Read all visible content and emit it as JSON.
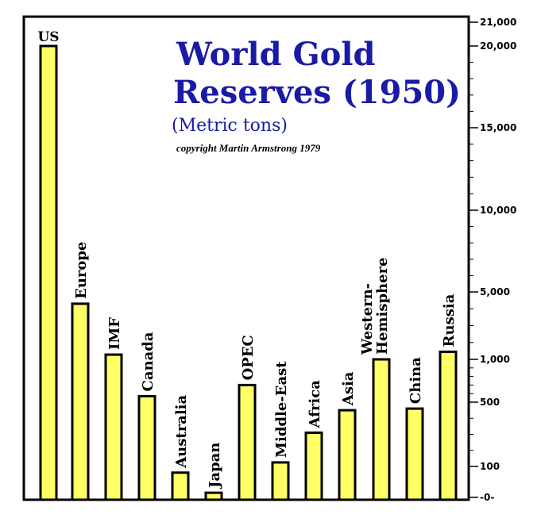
{
  "chart_data": {
    "type": "bar",
    "title_line1": "World Gold",
    "title_line2": "Reserves (1950)",
    "subtitle": "(Metric tons)",
    "credit": "copyright Martin Armstrong 1979",
    "y_scale": "nonlinear (piecewise)",
    "y_ticks": [
      {
        "value": 0,
        "label": "-0-"
      },
      {
        "value": 100,
        "label": "100"
      },
      {
        "value": 500,
        "label": "500"
      },
      {
        "value": 1000,
        "label": "1,000"
      },
      {
        "value": 5000,
        "label": "5,000"
      },
      {
        "value": 10000,
        "label": "10,000"
      },
      {
        "value": 15000,
        "label": "15,000"
      },
      {
        "value": 20000,
        "label": "20,000"
      },
      {
        "value": 21000,
        "label": "21,000"
      }
    ],
    "categories": [
      "US",
      "Europe",
      "IMF",
      "Canada",
      "Australia",
      "Japan",
      "OPEC",
      "Middle-East",
      "Africa",
      "Asia",
      "Western-\nHemisphere",
      "China",
      "Russia"
    ],
    "values": [
      20000,
      4300,
      1280,
      570,
      80,
      15,
      700,
      125,
      310,
      450,
      1000,
      460,
      1450
    ],
    "bar_color": "#ffff66",
    "title_color": "#1a1aa6"
  }
}
